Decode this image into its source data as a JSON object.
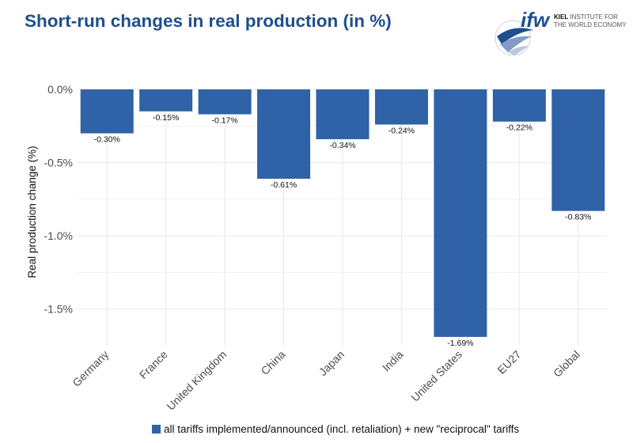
{
  "title": "Short-run changes in real production (in %)",
  "logo": {
    "mark": "ifw",
    "line1_bold": "KIEL",
    "line1_rest": " INSTITUTE FOR",
    "line2": "THE WORLD ECONOMY"
  },
  "colors": {
    "bar": "#2f62a6",
    "title": "#1f4e8c",
    "grid": "#e8e8e8",
    "logo_blue": "#1f4e8c"
  },
  "chart_data": {
    "type": "bar",
    "title": "Short-run changes in real production (in %)",
    "xlabel": "",
    "ylabel": "Real production change (%)",
    "ylim": [
      -1.75,
      0.0
    ],
    "yticks": [
      0.0,
      -0.5,
      -1.0,
      -1.5
    ],
    "ytick_labels": [
      "0.0%",
      "-0.5%",
      "-1.0%",
      "-1.5%"
    ],
    "categories": [
      "Germany",
      "France",
      "United Kingdom",
      "China",
      "Japan",
      "India",
      "United States",
      "EU27",
      "Global"
    ],
    "series": [
      {
        "name": "all tariffs implemented/announced (incl. retaliation) + new \"reciprocal\" tariffs",
        "values": [
          -0.3,
          -0.15,
          -0.17,
          -0.61,
          -0.34,
          -0.24,
          -1.69,
          -0.22,
          -0.83
        ],
        "labels": [
          "-0.30%",
          "-0.15%",
          "-0.17%",
          "-0.61%",
          "-0.34%",
          "-0.24%",
          "-1.69%",
          "-0.22%",
          "-0.83%"
        ]
      }
    ],
    "grid": true,
    "legend": "bottom"
  }
}
